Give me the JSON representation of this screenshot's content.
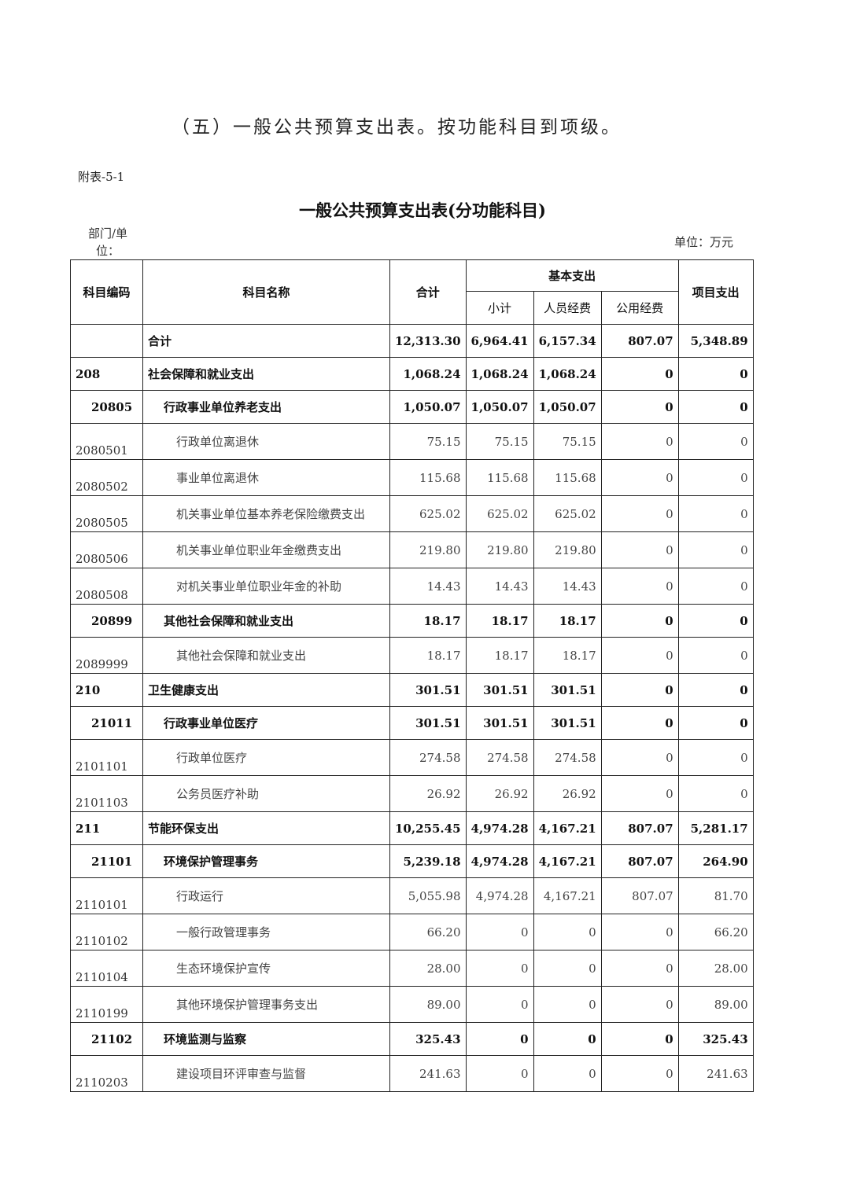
{
  "heading": "（五）一般公共预算支出表。按功能科目到项级。",
  "annex": "附表-5-1",
  "title": "一般公共预算支出表(分功能科目)",
  "dept_label": "部门/单位：",
  "unit_label": "单位：万元",
  "columns": {
    "code": "科目编码",
    "name": "科目名称",
    "total": "合计",
    "basic": "基本支出",
    "subtotal": "小计",
    "personnel": "人员经费",
    "public": "公用经费",
    "project": "项目支出"
  },
  "rows": [
    {
      "level": 0,
      "code": "",
      "name": "合计",
      "values": [
        "12,313.30",
        "6,964.41",
        "6,157.34",
        "807.07",
        "5,348.89"
      ]
    },
    {
      "level": 0,
      "code": "208",
      "name": "社会保障和就业支出",
      "values": [
        "1,068.24",
        "1,068.24",
        "1,068.24",
        "0",
        "0"
      ]
    },
    {
      "level": 1,
      "code": "20805",
      "name": "行政事业单位养老支出",
      "values": [
        "1,050.07",
        "1,050.07",
        "1,050.07",
        "0",
        "0"
      ]
    },
    {
      "level": 2,
      "code": "2080501",
      "name": "行政单位离退休",
      "values": [
        "75.15",
        "75.15",
        "75.15",
        "0",
        "0"
      ]
    },
    {
      "level": 2,
      "code": "2080502",
      "name": "事业单位离退休",
      "values": [
        "115.68",
        "115.68",
        "115.68",
        "0",
        "0"
      ]
    },
    {
      "level": 2,
      "code": "2080505",
      "name": "机关事业单位基本养老保险缴费支出",
      "values": [
        "625.02",
        "625.02",
        "625.02",
        "0",
        "0"
      ]
    },
    {
      "level": 2,
      "code": "2080506",
      "name": "机关事业单位职业年金缴费支出",
      "values": [
        "219.80",
        "219.80",
        "219.80",
        "0",
        "0"
      ]
    },
    {
      "level": 2,
      "code": "2080508",
      "name": "对机关事业单位职业年金的补助",
      "values": [
        "14.43",
        "14.43",
        "14.43",
        "0",
        "0"
      ]
    },
    {
      "level": 1,
      "code": "20899",
      "name": "其他社会保障和就业支出",
      "values": [
        "18.17",
        "18.17",
        "18.17",
        "0",
        "0"
      ]
    },
    {
      "level": 2,
      "code": "2089999",
      "name": "其他社会保障和就业支出",
      "values": [
        "18.17",
        "18.17",
        "18.17",
        "0",
        "0"
      ]
    },
    {
      "level": 0,
      "code": "210",
      "name": "卫生健康支出",
      "values": [
        "301.51",
        "301.51",
        "301.51",
        "0",
        "0"
      ]
    },
    {
      "level": 1,
      "code": "21011",
      "name": "行政事业单位医疗",
      "values": [
        "301.51",
        "301.51",
        "301.51",
        "0",
        "0"
      ]
    },
    {
      "level": 2,
      "code": "2101101",
      "name": "行政单位医疗",
      "values": [
        "274.58",
        "274.58",
        "274.58",
        "0",
        "0"
      ]
    },
    {
      "level": 2,
      "code": "2101103",
      "name": "公务员医疗补助",
      "values": [
        "26.92",
        "26.92",
        "26.92",
        "0",
        "0"
      ]
    },
    {
      "level": 0,
      "code": "211",
      "name": "节能环保支出",
      "values": [
        "10,255.45",
        "4,974.28",
        "4,167.21",
        "807.07",
        "5,281.17"
      ]
    },
    {
      "level": 1,
      "code": "21101",
      "name": "环境保护管理事务",
      "values": [
        "5,239.18",
        "4,974.28",
        "4,167.21",
        "807.07",
        "264.90"
      ]
    },
    {
      "level": 2,
      "code": "2110101",
      "name": "行政运行",
      "values": [
        "5,055.98",
        "4,974.28",
        "4,167.21",
        "807.07",
        "81.70"
      ]
    },
    {
      "level": 2,
      "code": "2110102",
      "name": "一般行政管理事务",
      "values": [
        "66.20",
        "0",
        "0",
        "0",
        "66.20"
      ]
    },
    {
      "level": 2,
      "code": "2110104",
      "name": "生态环境保护宣传",
      "values": [
        "28.00",
        "0",
        "0",
        "0",
        "28.00"
      ]
    },
    {
      "level": 2,
      "code": "2110199",
      "name": "其他环境保护管理事务支出",
      "values": [
        "89.00",
        "0",
        "0",
        "0",
        "89.00"
      ]
    },
    {
      "level": 1,
      "code": "21102",
      "name": "环境监测与监察",
      "values": [
        "325.43",
        "0",
        "0",
        "0",
        "325.43"
      ]
    },
    {
      "level": 2,
      "code": "2110203",
      "name": "建设项目环评审查与监督",
      "values": [
        "241.63",
        "0",
        "0",
        "0",
        "241.63"
      ]
    }
  ]
}
